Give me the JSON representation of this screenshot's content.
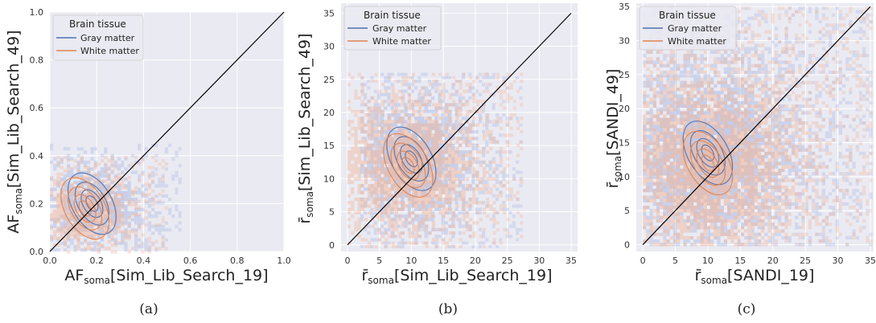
{
  "colors": {
    "background": "#eaeaf2",
    "grid": "#ffffff",
    "gray_matter": "#4c72b0",
    "white_matter": "#dd8452",
    "gray_fill": "#9aaee0",
    "white_fill": "#f2b79b",
    "identity_line": "#000000"
  },
  "chart_data": [
    {
      "type": "scatter",
      "panel": "a",
      "caption": "(a)",
      "xlabel_main": "AF",
      "xlabel_sub": "soma",
      "xlabel_rest": "[Sim_Lib_Search_19]",
      "ylabel_main": "AF",
      "ylabel_sub": "soma",
      "ylabel_rest": "[Sim_Lib_Search_49]",
      "xlim": [
        0,
        1
      ],
      "ylim": [
        0,
        1
      ],
      "xticks": [
        "0.0",
        "0.2",
        "0.4",
        "0.6",
        "0.8",
        "1.0"
      ],
      "yticks": [
        "0.0",
        "0.2",
        "0.4",
        "0.6",
        "0.8",
        "1.0"
      ],
      "grid": true,
      "legend": {
        "title": "Brain tissue",
        "location": "top-left",
        "entries": [
          "Gray matter",
          "White matter"
        ]
      },
      "identity_line": [
        [
          0,
          0
        ],
        [
          1,
          1
        ]
      ],
      "gray_matter": {
        "x_range": [
          0.0,
          0.55
        ],
        "y_range": [
          0.0,
          0.45
        ],
        "center": [
          0.18,
          0.2
        ]
      },
      "white_matter": {
        "x_range": [
          0.0,
          0.5
        ],
        "y_range": [
          0.0,
          0.4
        ],
        "center": [
          0.15,
          0.18
        ]
      }
    },
    {
      "type": "scatter",
      "panel": "b",
      "caption": "(b)",
      "xlabel_main": "r̄",
      "xlabel_sub": "soma",
      "xlabel_rest": "[Sim_Lib_Search_19]",
      "ylabel_main": "r̄",
      "ylabel_sub": "soma",
      "ylabel_rest": "[Sim_Lib_Search_49]",
      "xlim": [
        -1,
        36
      ],
      "ylim": [
        -1,
        36.5
      ],
      "xticks": [
        "0",
        "5",
        "10",
        "15",
        "20",
        "25",
        "30",
        "35"
      ],
      "yticks": [
        "0",
        "5",
        "10",
        "15",
        "20",
        "25",
        "30",
        "35"
      ],
      "grid": true,
      "legend": {
        "title": "Brain tissue",
        "location": "top-left",
        "entries": [
          "Gray matter",
          "White matter"
        ]
      },
      "identity_line": [
        [
          0,
          0
        ],
        [
          35,
          35
        ]
      ],
      "gray_matter": {
        "x_range": [
          2,
          27
        ],
        "y_range": [
          0,
          26
        ],
        "center": [
          10,
          13
        ]
      },
      "white_matter": {
        "x_range": [
          0,
          27
        ],
        "y_range": [
          0,
          26
        ],
        "center": [
          9.5,
          12
        ]
      }
    },
    {
      "type": "scatter",
      "panel": "c",
      "caption": "(c)",
      "xlabel_main": "r̄",
      "xlabel_sub": "soma",
      "xlabel_rest": "[SANDI_19]",
      "ylabel_main": "r̄",
      "ylabel_sub": "soma",
      "ylabel_rest": "[SANDI_49]",
      "xlim": [
        -1,
        35.5
      ],
      "ylim": [
        -1,
        35.5
      ],
      "xticks": [
        "0",
        "5",
        "10",
        "15",
        "20",
        "25",
        "30",
        "35"
      ],
      "yticks": [
        "0",
        "5",
        "10",
        "15",
        "20",
        "25",
        "30",
        "35"
      ],
      "grid": true,
      "legend": {
        "title": "Brain tissue",
        "location": "top-left",
        "entries": [
          "Gray matter",
          "White matter"
        ]
      },
      "identity_line": [
        [
          0,
          0
        ],
        [
          35,
          35
        ]
      ],
      "gray_matter": {
        "x_range": [
          0,
          35
        ],
        "y_range": [
          0,
          35
        ],
        "center": [
          10,
          13.5
        ]
      },
      "white_matter": {
        "x_range": [
          0,
          35
        ],
        "y_range": [
          0,
          35
        ],
        "center": [
          10,
          12
        ]
      }
    }
  ]
}
